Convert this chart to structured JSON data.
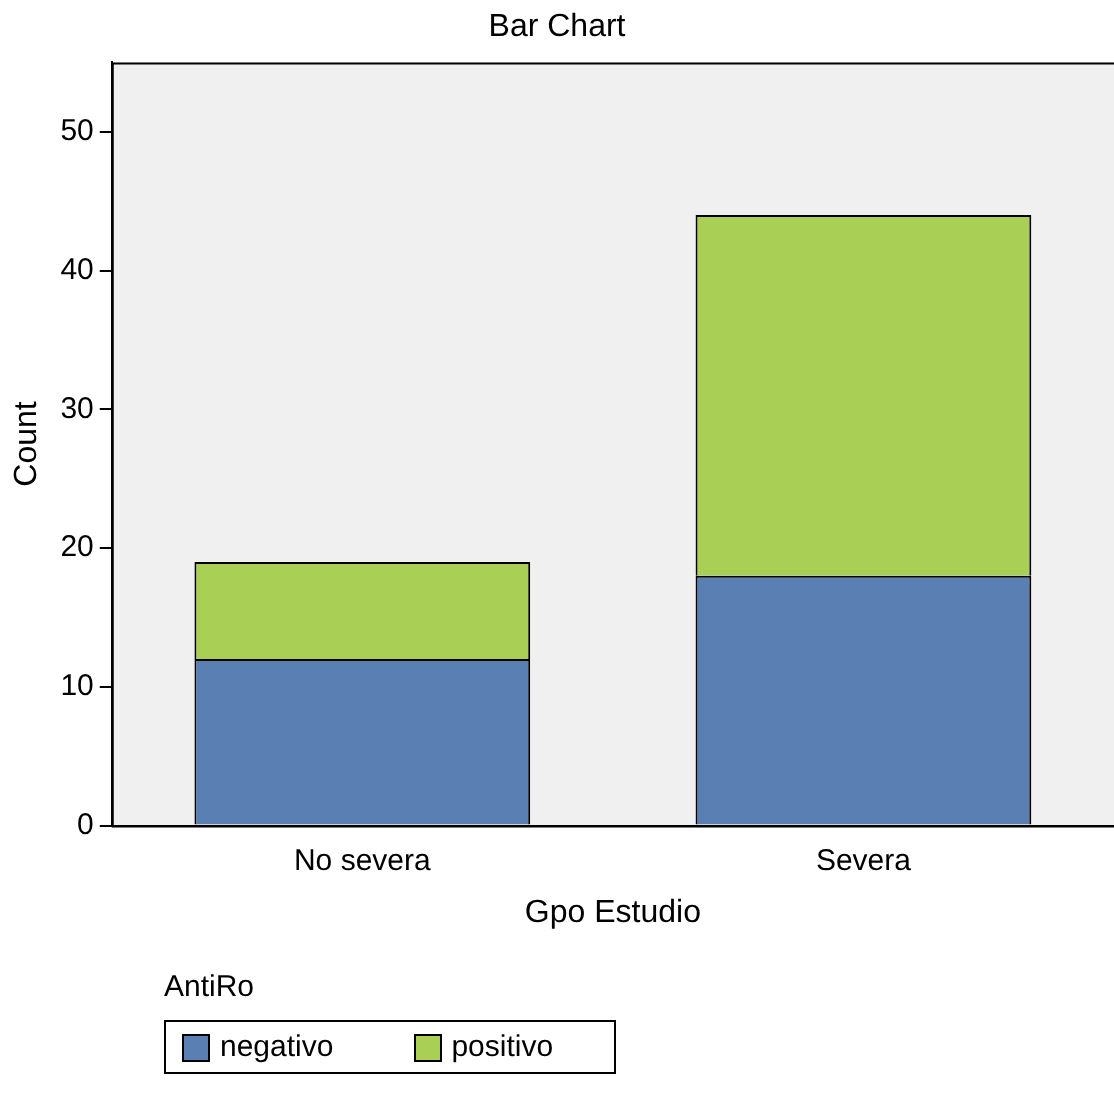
{
  "chart_data": {
    "type": "bar",
    "title": "Bar Chart",
    "xlabel": "Gpo Estudio",
    "ylabel": "Count",
    "legend_title": "AntiRo",
    "categories": [
      "No severa",
      "Severa"
    ],
    "stacked": true,
    "ylim": [
      0,
      55
    ],
    "yticks": [
      0,
      10,
      20,
      30,
      40,
      50
    ],
    "grid": false,
    "legend": "bottom left",
    "series": [
      {
        "name": "negativo",
        "color": "#5a80b3",
        "values": [
          12,
          18
        ]
      },
      {
        "name": "positivo",
        "color": "#a9cf55",
        "values": [
          7,
          26
        ]
      }
    ]
  }
}
